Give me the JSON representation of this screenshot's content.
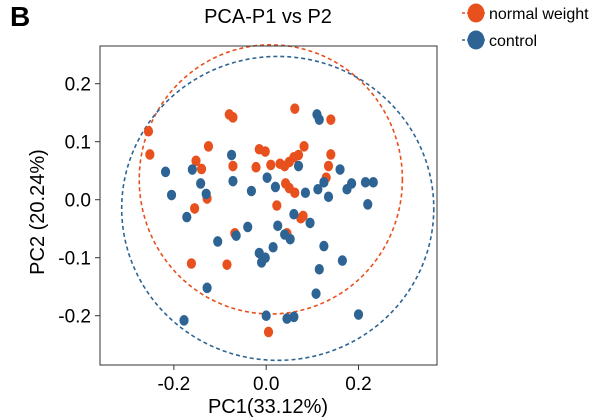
{
  "panel_label": "B",
  "chart_data": {
    "type": "scatter",
    "title": "PCA-P1 vs P2",
    "xlabel": "PC1(33.12%)",
    "ylabel": "PC2 (20.24%)",
    "xlim": [
      -0.36,
      0.37
    ],
    "ylim": [
      -0.285,
      0.265
    ],
    "x_ticks": [
      -0.2,
      0.0,
      0.2
    ],
    "x_tick_labels": [
      "-0.2",
      "0.0",
      "0.2"
    ],
    "y_ticks": [
      -0.2,
      -0.1,
      0.0,
      0.1,
      0.2
    ],
    "y_tick_labels": [
      "-0.2",
      "-0.1",
      "0.0",
      "0.1",
      "0.2"
    ],
    "grid": false,
    "legend_position": "outside-top-right",
    "series": [
      {
        "name": "normal weight",
        "color": "#E8501E",
        "points": [
          [
            -0.255,
            0.118
          ],
          [
            -0.252,
            0.078
          ],
          [
            -0.125,
            0.092
          ],
          [
            -0.08,
            0.147
          ],
          [
            -0.072,
            0.142
          ],
          [
            -0.152,
            0.067
          ],
          [
            -0.14,
            0.053
          ],
          [
            -0.155,
            -0.015
          ],
          [
            -0.128,
            0.002
          ],
          [
            -0.072,
            0.058
          ],
          [
            -0.068,
            -0.058
          ],
          [
            -0.022,
            0.056
          ],
          [
            -0.015,
            0.087
          ],
          [
            -0.002,
            0.083
          ],
          [
            0.01,
            0.06
          ],
          [
            0.023,
            -0.01
          ],
          [
            0.03,
            0.062
          ],
          [
            0.04,
            0.058
          ],
          [
            0.05,
            0.065
          ],
          [
            0.062,
            0.157
          ],
          [
            0.06,
            0.073
          ],
          [
            0.07,
            0.077
          ],
          [
            0.082,
            0.092
          ],
          [
            0.05,
            0.02
          ],
          [
            0.062,
            0.012
          ],
          [
            0.075,
            -0.032
          ],
          [
            0.045,
            -0.058
          ],
          [
            0.14,
            0.138
          ],
          [
            0.14,
            0.078
          ],
          [
            0.135,
            0.058
          ],
          [
            0.13,
            0.038
          ],
          [
            -0.085,
            -0.112
          ],
          [
            -0.162,
            -0.11
          ],
          [
            0.005,
            -0.228
          ],
          [
            0.08,
            -0.028
          ],
          [
            0.042,
            0.028
          ]
        ]
      },
      {
        "name": "control",
        "color": "#2E6494",
        "points": [
          [
            -0.218,
            0.048
          ],
          [
            -0.205,
            0.008
          ],
          [
            -0.172,
            -0.03
          ],
          [
            -0.16,
            0.052
          ],
          [
            -0.142,
            0.028
          ],
          [
            -0.13,
            0.01
          ],
          [
            -0.105,
            -0.072
          ],
          [
            -0.075,
            0.077
          ],
          [
            -0.072,
            0.032
          ],
          [
            -0.065,
            -0.062
          ],
          [
            -0.04,
            -0.047
          ],
          [
            -0.032,
            0.015
          ],
          [
            -0.015,
            -0.092
          ],
          [
            -0.01,
            -0.108
          ],
          [
            -0.002,
            -0.1
          ],
          [
            0.002,
            0.038
          ],
          [
            0.015,
            -0.082
          ],
          [
            0.02,
            0.022
          ],
          [
            0.025,
            -0.045
          ],
          [
            0.04,
            -0.06
          ],
          [
            0.052,
            -0.068
          ],
          [
            0.06,
            -0.025
          ],
          [
            0.07,
            0.058
          ],
          [
            0.085,
            0.012
          ],
          [
            0.095,
            -0.04
          ],
          [
            0.11,
            0.147
          ],
          [
            0.112,
            0.018
          ],
          [
            0.115,
            0.138
          ],
          [
            0.125,
            0.03
          ],
          [
            0.135,
            0.005
          ],
          [
            0.16,
            0.052
          ],
          [
            0.175,
            0.018
          ],
          [
            0.185,
            0.028
          ],
          [
            0.22,
            -0.008
          ],
          [
            0.215,
            0.03
          ],
          [
            0.115,
            -0.12
          ],
          [
            0.108,
            -0.162
          ],
          [
            0.06,
            -0.202
          ],
          [
            0.045,
            -0.205
          ],
          [
            0.2,
            -0.198
          ],
          [
            -0.178,
            -0.208
          ],
          [
            -0.128,
            -0.152
          ],
          [
            0.0,
            -0.2
          ],
          [
            0.232,
            0.03
          ],
          [
            0.165,
            -0.105
          ],
          [
            0.125,
            -0.08
          ]
        ]
      }
    ],
    "ellipses": [
      {
        "series": "normal weight",
        "cx": 0.01,
        "cy": 0.035,
        "rx": 0.285,
        "ry": 0.232
      },
      {
        "series": "control",
        "cx": 0.025,
        "cy": -0.015,
        "rx": 0.338,
        "ry": 0.262
      }
    ]
  }
}
